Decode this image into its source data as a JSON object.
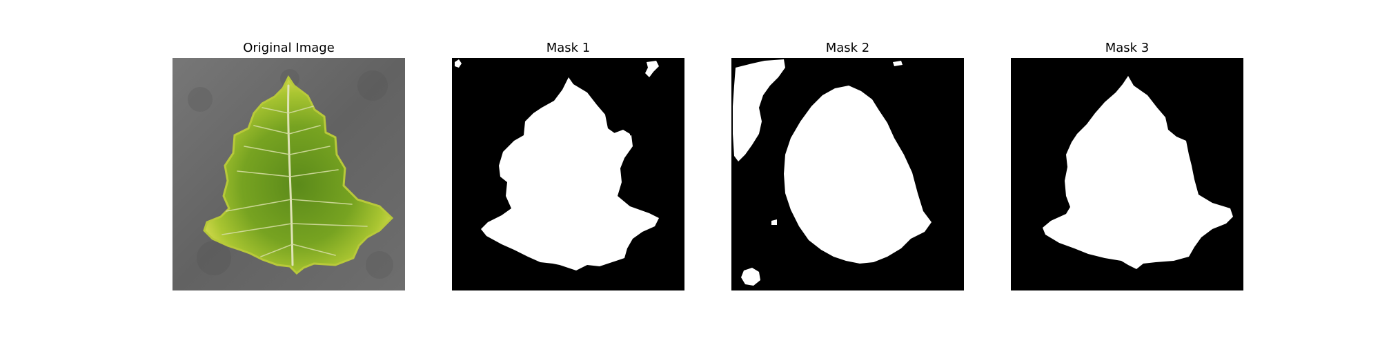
{
  "figure": {
    "panels": [
      {
        "title": "Original Image",
        "content": "leaf-photo"
      },
      {
        "title": "Mask 1",
        "content": "binary-mask"
      },
      {
        "title": "Mask 2",
        "content": "binary-mask"
      },
      {
        "title": "Mask 3",
        "content": "binary-mask"
      }
    ]
  },
  "colors": {
    "background": "#ffffff",
    "mask_background": "#000000",
    "mask_foreground": "#ffffff",
    "photo_surface": "#6b6b6b",
    "leaf_green": "#6f9a1f",
    "leaf_yellow": "#c8d23a",
    "leaf_vein": "#e6e9c8"
  }
}
